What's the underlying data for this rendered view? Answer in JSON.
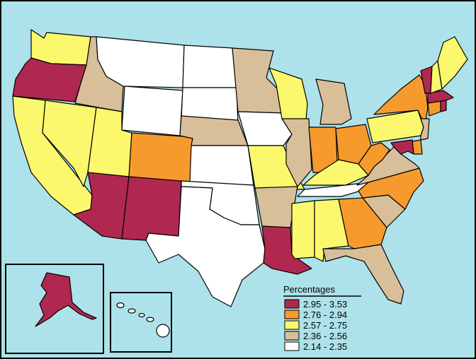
{
  "colors": {
    "ocean": "#ade2ea",
    "c1": "#b0284f",
    "c2": "#f79a2e",
    "c3": "#fbf86d",
    "c4": "#d8bf9a",
    "c5": "#ffffff"
  },
  "legend": {
    "title": "Percentages",
    "items": [
      {
        "label": "2.95 - 3.53",
        "color": "#b0284f"
      },
      {
        "label": "2.76 - 2.94",
        "color": "#f79a2e"
      },
      {
        "label": "2.57 - 2.75",
        "color": "#fbf86d"
      },
      {
        "label": "2.36 - 2.56",
        "color": "#d8bf9a"
      },
      {
        "label": "2.14 - 2.35",
        "color": "#ffffff"
      }
    ]
  },
  "states": {
    "WA": "c3",
    "OR": "c1",
    "CA": "c3",
    "NV": "c3",
    "ID": "c4",
    "MT": "c5",
    "WY": "c5",
    "UT": "c3",
    "AZ": "c1",
    "CO": "c2",
    "NM": "c1",
    "ND": "c5",
    "SD": "c5",
    "NE": "c4",
    "KS": "c5",
    "OK": "c5",
    "TX": "c5",
    "MN": "c4",
    "IA": "c5",
    "MO": "c3",
    "AR": "c4",
    "LA": "c1",
    "WI": "c3",
    "IL": "c4",
    "MI": "c4",
    "IN": "c2",
    "OH": "c2",
    "KY": "c3",
    "TN": "c5",
    "MS": "c3",
    "AL": "c3",
    "GA": "c2",
    "FL": "c4",
    "SC": "c4",
    "NC": "c2",
    "VA": "c4",
    "WV": "c2",
    "PA": "c3",
    "NY": "c2",
    "NJ": "c4",
    "DE": "c2",
    "MD": "c1",
    "CT": "c2",
    "RI": "c1",
    "MA": "c1",
    "VT": "c1",
    "NH": "c3",
    "ME": "c3",
    "AK": "c1",
    "HI": "c5"
  }
}
